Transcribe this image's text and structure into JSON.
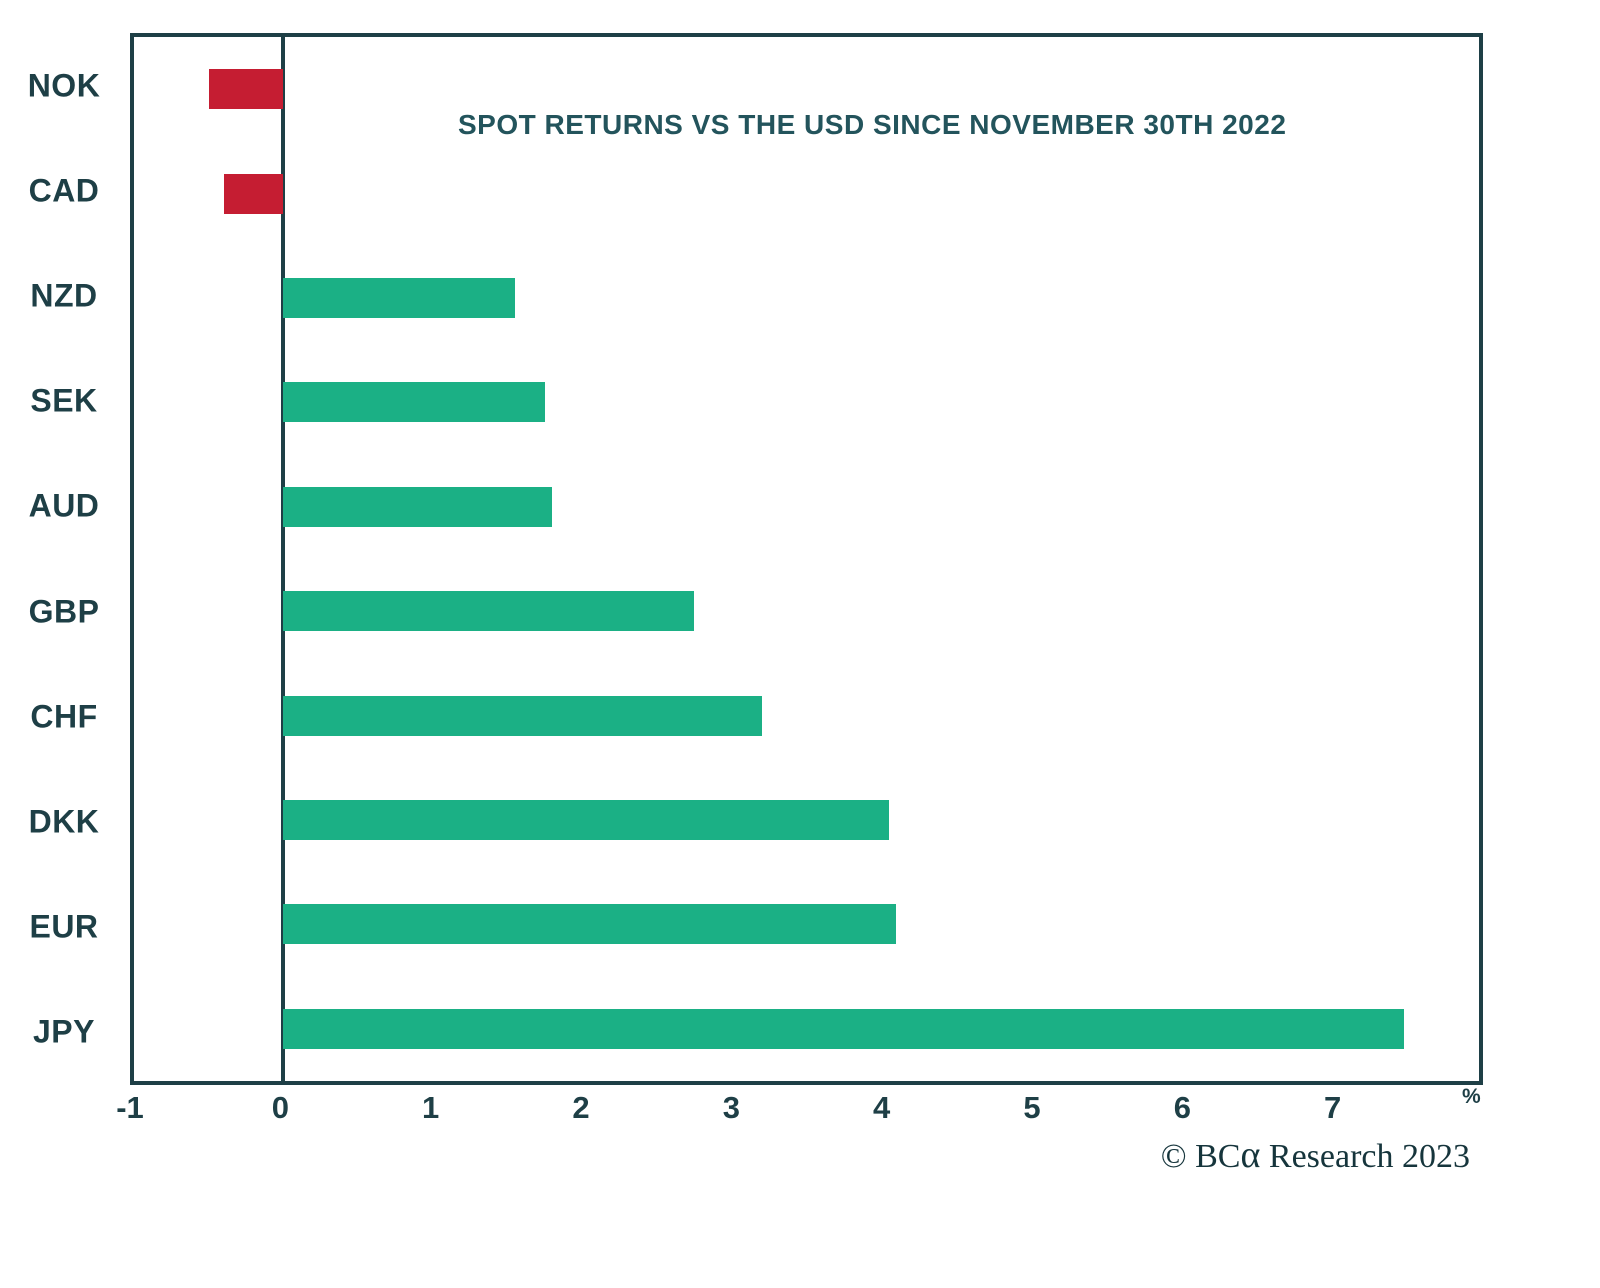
{
  "chart_data": {
    "type": "bar",
    "orientation": "horizontal",
    "title": "SPOT RETURNS VS THE USD SINCE NOVEMBER 30TH 2022",
    "categories": [
      "NOK",
      "CAD",
      "NZD",
      "SEK",
      "AUD",
      "GBP",
      "CHF",
      "DKK",
      "EUR",
      "JPY"
    ],
    "values": [
      -0.5,
      -0.4,
      1.55,
      1.75,
      1.8,
      2.75,
      3.2,
      4.05,
      4.1,
      7.5
    ],
    "xlim": [
      -1,
      8
    ],
    "xticks": [
      -1,
      0,
      1,
      2,
      3,
      4,
      5,
      6,
      7
    ],
    "x_unit_label": "%",
    "positive_color": "#1bb085",
    "negative_color": "#c51d32",
    "axis_color": "#1e3f46",
    "grid": false,
    "legend_position": "none"
  },
  "attribution": {
    "copyright_prefix": "© BC",
    "alpha_glyph": "α",
    "suffix": " Research 2023"
  }
}
